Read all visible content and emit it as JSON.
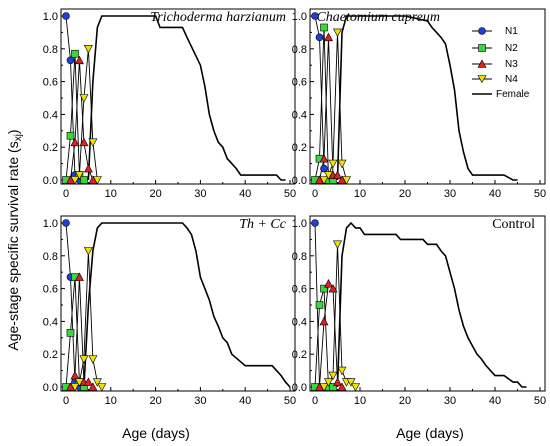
{
  "figure": {
    "ylabel_main": "Age-stage specific survival rate (s",
    "ylabel_sub": "xj",
    "ylabel_end": ")",
    "xlabel_left": "Age (days)",
    "xlabel_right": "Age (days)"
  },
  "legend": {
    "n1": "N1",
    "n2": "N2",
    "n3": "N3",
    "n4": "N4",
    "female": "Female"
  },
  "colors": {
    "n1": "#1f3fd8",
    "n2": "#39d83a",
    "n3": "#e02020",
    "n4": "#f0e000",
    "female": "#000000"
  },
  "chart_data": [
    {
      "type": "line",
      "title": "Trichoderma harzianum",
      "xlim": [
        0,
        50
      ],
      "ylim": [
        0,
        1.0
      ],
      "xticks": [
        0,
        10,
        20,
        30,
        40,
        50
      ],
      "yticks": [
        0.0,
        0.2,
        0.4,
        0.6,
        0.8,
        1.0
      ],
      "series": [
        {
          "name": "N1",
          "x": [
            0,
            1,
            2,
            3
          ],
          "y": [
            1.0,
            0.73,
            0.03,
            0.0
          ]
        },
        {
          "name": "N2",
          "x": [
            0,
            1,
            2,
            3,
            4
          ],
          "y": [
            0.0,
            0.27,
            0.77,
            0.03,
            0.0
          ]
        },
        {
          "name": "N3",
          "x": [
            1,
            2,
            3,
            4,
            5,
            6
          ],
          "y": [
            0.0,
            0.23,
            0.73,
            0.23,
            0.07,
            0.0
          ]
        },
        {
          "name": "N4",
          "x": [
            2,
            3,
            4,
            5,
            6,
            7
          ],
          "y": [
            0.0,
            0.03,
            0.5,
            0.8,
            0.23,
            0.0
          ]
        },
        {
          "name": "Female",
          "x": [
            5,
            6,
            7,
            8,
            9,
            20,
            21,
            26,
            27,
            30,
            31,
            32,
            33,
            34,
            35,
            36,
            37,
            38,
            39,
            40,
            47,
            48,
            49
          ],
          "y": [
            0.0,
            0.6,
            0.93,
            1.0,
            1.0,
            1.0,
            0.93,
            0.93,
            0.87,
            0.7,
            0.57,
            0.4,
            0.3,
            0.23,
            0.2,
            0.13,
            0.1,
            0.07,
            0.03,
            0.03,
            0.03,
            0.0,
            0.0
          ]
        }
      ]
    },
    {
      "type": "line",
      "title": "Chaetomium cupreum",
      "xlim": [
        0,
        50
      ],
      "ylim": [
        0,
        1.0
      ],
      "xticks": [
        0,
        10,
        20,
        30,
        40,
        50
      ],
      "yticks": [
        0.0,
        0.2,
        0.4,
        0.6,
        0.8,
        1.0
      ],
      "series": [
        {
          "name": "N1",
          "x": [
            0,
            1,
            2,
            3
          ],
          "y": [
            1.0,
            0.87,
            0.07,
            0.0
          ]
        },
        {
          "name": "N2",
          "x": [
            0,
            1,
            2,
            3,
            4
          ],
          "y": [
            0.0,
            0.13,
            0.93,
            0.0,
            0.0
          ]
        },
        {
          "name": "N3",
          "x": [
            1,
            2,
            3,
            4,
            5,
            6
          ],
          "y": [
            0.0,
            0.13,
            0.87,
            0.03,
            0.03,
            0.0
          ]
        },
        {
          "name": "N4",
          "x": [
            2,
            3,
            4,
            5,
            6,
            7
          ],
          "y": [
            0.0,
            0.03,
            0.1,
            0.9,
            0.1,
            0.0
          ]
        },
        {
          "name": "Female",
          "x": [
            5,
            6,
            7,
            8,
            20,
            25,
            26,
            27,
            28,
            29,
            30,
            31,
            32,
            33,
            34,
            35,
            36,
            40,
            42,
            44,
            45
          ],
          "y": [
            0.0,
            0.9,
            1.0,
            1.0,
            1.0,
            0.97,
            0.93,
            0.9,
            0.87,
            0.83,
            0.7,
            0.55,
            0.3,
            0.17,
            0.07,
            0.03,
            0.03,
            0.03,
            0.03,
            0.0,
            0.0
          ]
        }
      ]
    },
    {
      "type": "line",
      "title": "Th + Cc",
      "xlim": [
        0,
        50
      ],
      "ylim": [
        0,
        1.0
      ],
      "xticks": [
        0,
        10,
        20,
        30,
        40,
        50
      ],
      "yticks": [
        0.0,
        0.2,
        0.4,
        0.6,
        0.8,
        1.0
      ],
      "series": [
        {
          "name": "N1",
          "x": [
            0,
            1,
            2,
            3
          ],
          "y": [
            1.0,
            0.67,
            0.03,
            0.0
          ]
        },
        {
          "name": "N2",
          "x": [
            0,
            1,
            2,
            3,
            4
          ],
          "y": [
            0.0,
            0.33,
            0.67,
            0.03,
            0.0
          ]
        },
        {
          "name": "N3",
          "x": [
            1,
            2,
            3,
            4,
            5,
            6
          ],
          "y": [
            0.0,
            0.07,
            0.67,
            0.03,
            0.03,
            0.0
          ]
        },
        {
          "name": "N4",
          "x": [
            2,
            3,
            4,
            5,
            6,
            7,
            8
          ],
          "y": [
            0.0,
            0.03,
            0.17,
            0.83,
            0.17,
            0.03,
            0.0
          ]
        },
        {
          "name": "Female",
          "x": [
            4,
            5,
            6,
            7,
            8,
            26,
            27,
            28,
            29,
            30,
            31,
            32,
            33,
            34,
            35,
            36,
            37,
            40,
            45,
            46,
            47,
            48,
            49,
            50
          ],
          "y": [
            0.0,
            0.5,
            0.83,
            0.97,
            1.0,
            1.0,
            0.97,
            0.93,
            0.83,
            0.67,
            0.6,
            0.53,
            0.43,
            0.37,
            0.3,
            0.27,
            0.2,
            0.13,
            0.13,
            0.13,
            0.1,
            0.07,
            0.03,
            0.0
          ]
        }
      ]
    },
    {
      "type": "line",
      "title": "Control",
      "xlim": [
        0,
        50
      ],
      "ylim": [
        0,
        1.0
      ],
      "xticks": [
        0,
        10,
        20,
        30,
        40,
        50
      ],
      "yticks": [
        0.0,
        0.2,
        0.4,
        0.6,
        0.8,
        1.0
      ],
      "series": [
        {
          "name": "N1",
          "x": [
            0,
            1,
            2,
            3
          ],
          "y": [
            1.0,
            0.0,
            0.0,
            0.0
          ]
        },
        {
          "name": "N2",
          "x": [
            0,
            1,
            2,
            3,
            4
          ],
          "y": [
            0.0,
            0.5,
            0.6,
            0.0,
            0.0
          ]
        },
        {
          "name": "N3",
          "x": [
            1,
            2,
            3,
            4,
            5,
            6
          ],
          "y": [
            0.0,
            0.4,
            0.63,
            0.6,
            0.03,
            0.0
          ]
        },
        {
          "name": "N4",
          "x": [
            2,
            3,
            4,
            5,
            6,
            7,
            8,
            9
          ],
          "y": [
            0.0,
            0.03,
            0.07,
            0.87,
            0.1,
            0.03,
            0.03,
            0.0
          ]
        },
        {
          "name": "Female",
          "x": [
            5,
            6,
            7,
            8,
            9,
            10,
            11,
            12,
            18,
            19,
            24,
            25,
            27,
            28,
            29,
            30,
            31,
            32,
            33,
            34,
            35,
            36,
            37,
            38,
            39,
            40,
            42,
            44,
            45,
            46,
            47
          ],
          "y": [
            0.0,
            0.8,
            0.97,
            1.0,
            0.97,
            0.97,
            0.93,
            0.93,
            0.93,
            0.9,
            0.9,
            0.87,
            0.87,
            0.83,
            0.8,
            0.7,
            0.6,
            0.47,
            0.37,
            0.3,
            0.25,
            0.2,
            0.17,
            0.13,
            0.1,
            0.07,
            0.07,
            0.03,
            0.03,
            0.0,
            0.0
          ]
        }
      ]
    }
  ]
}
